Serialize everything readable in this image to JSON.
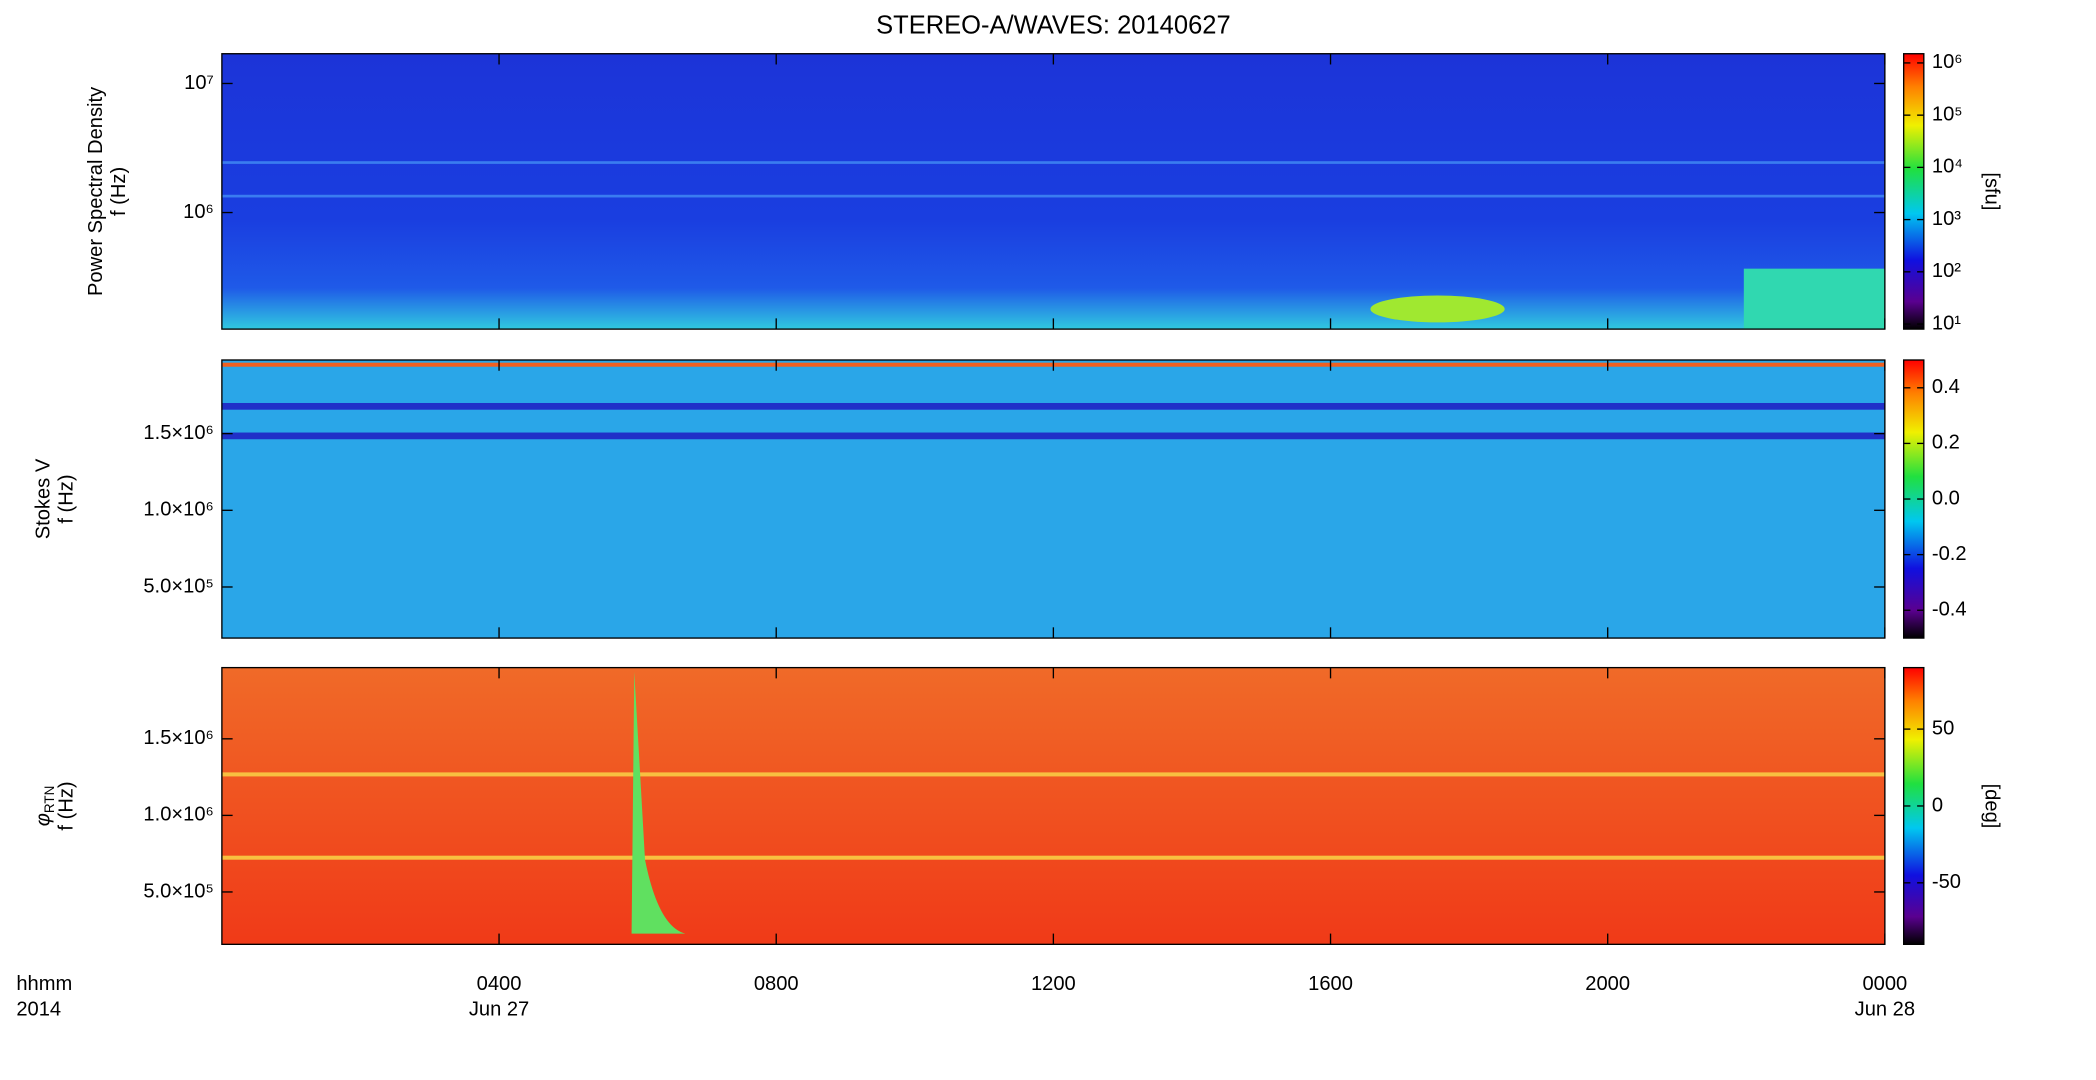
{
  "chart_data": [
    {
      "type": "heatmap",
      "title": "STEREO-A/WAVES: 20140627",
      "ylabel": "Power Spectral Density",
      "ylabel2": "f (Hz)",
      "xlim": [
        0,
        24
      ],
      "ylim": [
        125000,
        17000000
      ],
      "ylog": true,
      "yticks": [
        {
          "value": 1000000,
          "label": "10⁶"
        },
        {
          "value": 10000000,
          "label": "10⁷"
        }
      ],
      "colorbar": {
        "label": "[sfu]",
        "colormap": "rainbow",
        "log": true,
        "lim": [
          8,
          1500000
        ],
        "ticks": [
          {
            "value": 10,
            "label": "10¹"
          },
          {
            "value": 100,
            "label": "10²"
          },
          {
            "value": 1000,
            "label": "10³"
          },
          {
            "value": 10000,
            "label": "10⁴"
          },
          {
            "value": 100000,
            "label": "10⁵"
          },
          {
            "value": 1000000,
            "label": "10⁶"
          }
        ]
      }
    },
    {
      "type": "heatmap",
      "ylabel": "Stokes V",
      "ylabel2": "f (Hz)",
      "xlim": [
        0,
        24
      ],
      "ylim": [
        167000,
        1980000
      ],
      "ylog": false,
      "yticks": [
        {
          "value": 500000,
          "label": "5.0×10⁵"
        },
        {
          "value": 1000000,
          "label": "1.0×10⁶"
        },
        {
          "value": 1500000,
          "label": "1.5×10⁶"
        }
      ],
      "colorbar": {
        "colormap": "rainbow",
        "log": false,
        "lim": [
          -0.5,
          0.5
        ],
        "ticks": [
          -0.4,
          -0.2,
          {
            "value": 0,
            "label": "0.0"
          },
          0.2,
          0.4
        ]
      }
    },
    {
      "type": "heatmap",
      "ylabel": "φ",
      "ylabel_subscript": "RTN",
      "ylabel2": "f (Hz)",
      "xlim": [
        0,
        24
      ],
      "ylim": [
        158000,
        1965000
      ],
      "ylog": false,
      "yticks": [
        {
          "value": 500000,
          "label": "5.0×10⁵"
        },
        {
          "value": 1000000,
          "label": "1.0×10⁶"
        },
        {
          "value": 1500000,
          "label": "1.5×10⁶"
        }
      ],
      "xlabel": [
        "hhmm",
        "2014"
      ],
      "xticks": [
        {
          "value": 4,
          "label": "0400"
        },
        {
          "value": 8,
          "label": "0800"
        },
        {
          "value": 12,
          "label": "1200"
        },
        {
          "value": 16,
          "label": "1600"
        },
        {
          "value": 20,
          "label": "2000"
        },
        {
          "value": 24,
          "label": "0000"
        }
      ],
      "xtick_dates": [
        {
          "value": 4,
          "label": "Jun 27"
        },
        {
          "value": 24,
          "label": "Jun 28"
        }
      ],
      "colorbar": {
        "label": "[deg]",
        "colormap": "rainbow",
        "log": false,
        "lim": [
          -90,
          90
        ],
        "ticks": [
          -50,
          0,
          50
        ]
      }
    }
  ]
}
